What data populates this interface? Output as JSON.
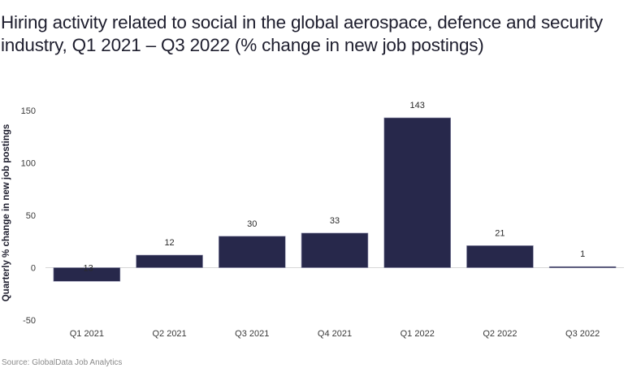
{
  "chart_data": {
    "type": "bar",
    "title": "Hiring activity related to social in the global aerospace, defence and security industry, Q1 2021 – Q3 2022 (% change in new job postings)",
    "xlabel": "",
    "ylabel": "Quarterly % change in new job postings",
    "categories": [
      "Q1 2021",
      "Q2 2021",
      "Q3 2021",
      "Q4 2021",
      "Q1 2022",
      "Q2 2022",
      "Q3 2022"
    ],
    "values": [
      -13,
      12,
      30,
      33,
      143,
      21,
      1
    ],
    "data_labels": [
      "-13",
      "12",
      "30",
      "33",
      "143",
      "21",
      "1"
    ],
    "ylim": [
      -50,
      150
    ],
    "yticks": [
      150,
      100,
      50,
      0,
      -50
    ],
    "grid": false,
    "legend": "none",
    "colors": {
      "bar": "#27284b",
      "bar_edge": "#8a8aa8",
      "zero_line": "#d8d8d8"
    },
    "source": "Source: GlobalData Job Analytics"
  }
}
